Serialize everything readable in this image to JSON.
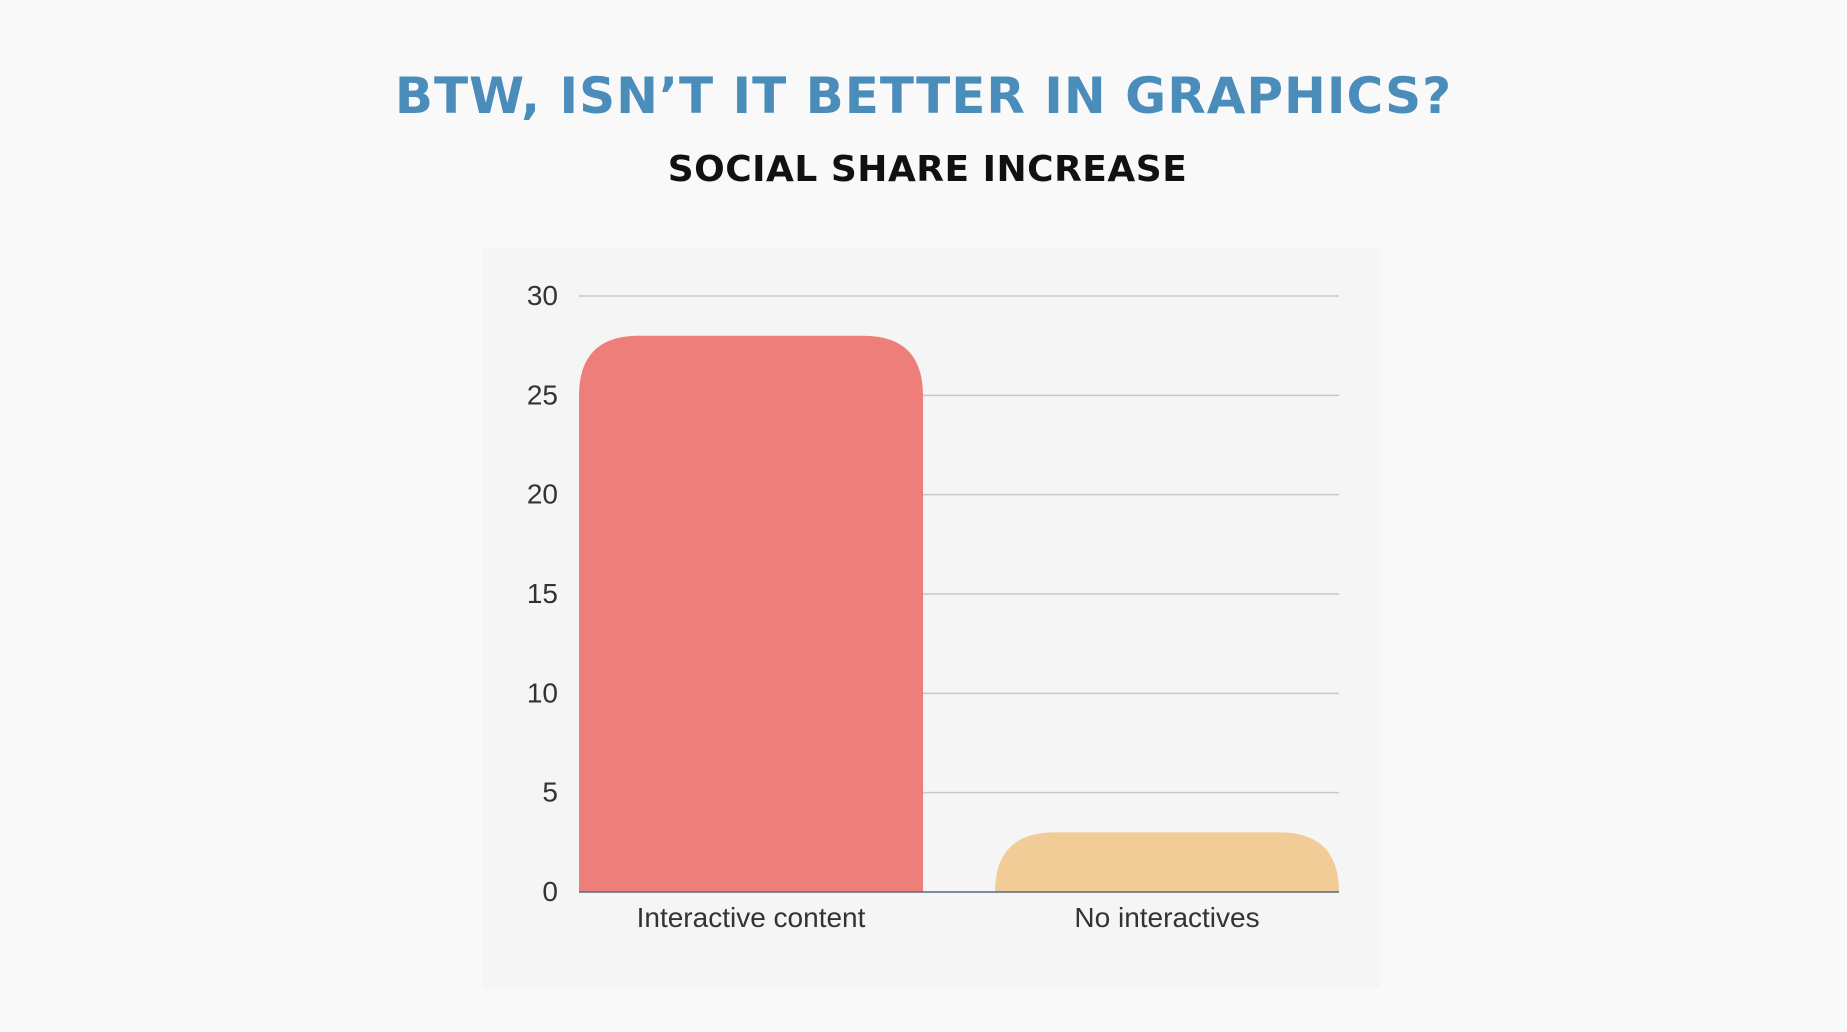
{
  "header": {
    "title": "BTW, ISN’T IT BETTER IN GRAPHICS?",
    "subtitle": "SOCIAL SHARE INCREASE"
  },
  "chart_data": {
    "type": "bar",
    "title": "SOCIAL SHARE INCREASE",
    "xlabel": "",
    "ylabel": "",
    "categories": [
      "Interactive content",
      "No interactives"
    ],
    "values": [
      28,
      3
    ],
    "bar_colors": [
      "#ee7e7a",
      "#f2cc96"
    ],
    "ylim": [
      0,
      30
    ],
    "yticks": [
      0,
      5,
      10,
      15,
      20,
      25,
      30
    ],
    "grid": true,
    "legend": "none"
  },
  "colors": {
    "title": "#4a8cba",
    "subtitle": "#111111",
    "grid": "#c8c8c8",
    "axis_text": "#333333"
  }
}
